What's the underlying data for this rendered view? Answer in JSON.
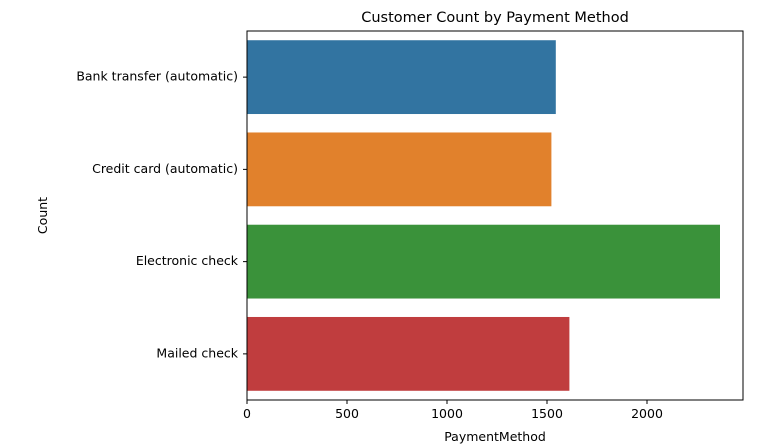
{
  "chart_data": {
    "type": "bar",
    "orientation": "horizontal",
    "title": "Customer Count by Payment Method",
    "xlabel": "PaymentMethod",
    "ylabel": "Count",
    "categories": [
      "Bank transfer (automatic)",
      "Credit card (automatic)",
      "Electronic check",
      "Mailed check"
    ],
    "values": [
      1544,
      1522,
      2365,
      1612
    ],
    "colors": [
      "#3274a1",
      "#e1812c",
      "#3a923a",
      "#c03d3e"
    ],
    "xlim": [
      0,
      2480
    ],
    "xticks": [
      0,
      500,
      1000,
      1500,
      2000
    ],
    "grid": false,
    "legend": "none"
  }
}
